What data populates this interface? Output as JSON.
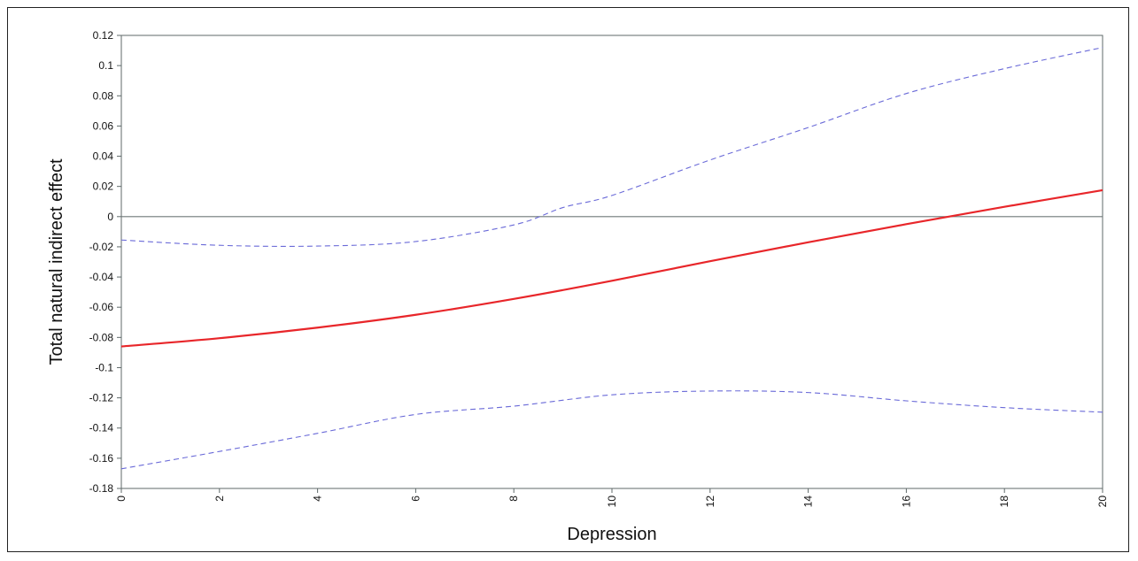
{
  "chart_data": {
    "type": "line",
    "title": "",
    "xlabel": "Depression",
    "ylabel": "Total natural indirect effect",
    "xlim": [
      0,
      20
    ],
    "ylim": [
      -0.18,
      0.12
    ],
    "x_ticks": [
      0,
      2,
      4,
      6,
      8,
      10,
      12,
      14,
      16,
      18,
      20
    ],
    "y_ticks": [
      -0.18,
      -0.16,
      -0.14,
      -0.12,
      -0.1,
      -0.08,
      -0.06,
      -0.04,
      -0.02,
      0,
      0.02,
      0.04,
      0.06,
      0.08,
      0.1,
      0.12
    ],
    "x_tick_labels": [
      "0",
      "2",
      "4",
      "6",
      "8",
      "10",
      "12",
      "14",
      "16",
      "18",
      "20"
    ],
    "y_tick_labels": [
      "-0.18",
      "-0.16",
      "-0.14",
      "-0.12",
      "-0.1",
      "-0.08",
      "-0.06",
      "-0.04",
      "-0.02",
      "0",
      "0.02",
      "0.04",
      "0.06",
      "0.08",
      "0.1",
      "0.12"
    ],
    "reference_line_y": 0,
    "grid": false,
    "legend": "none",
    "series": [
      {
        "role": "estimate",
        "style": "solid",
        "color": "#e8262a",
        "x": [
          0,
          2,
          4,
          6,
          8,
          10,
          12,
          14,
          16,
          18,
          20
        ],
        "y": [
          -0.086,
          -0.0805,
          -0.0735,
          -0.065,
          -0.0545,
          -0.0425,
          -0.0295,
          -0.017,
          -0.005,
          0.0065,
          0.0175
        ]
      },
      {
        "role": "upper bound",
        "style": "dashed",
        "color": "#6a6ad8",
        "x": [
          0,
          2,
          4,
          6,
          8,
          9,
          10,
          12,
          14,
          16,
          18,
          20
        ],
        "y": [
          -0.0155,
          -0.019,
          -0.0195,
          -0.0165,
          -0.0055,
          0.006,
          0.014,
          0.0375,
          0.059,
          0.0815,
          0.098,
          0.112
        ]
      },
      {
        "role": "lower bound",
        "style": "dashed",
        "color": "#6a6ad8",
        "x": [
          0,
          2,
          4,
          6,
          8,
          10,
          12,
          14,
          16,
          18,
          20
        ],
        "y": [
          -0.167,
          -0.1555,
          -0.1435,
          -0.131,
          -0.1255,
          -0.118,
          -0.1155,
          -0.1165,
          -0.122,
          -0.1265,
          -0.1295
        ]
      }
    ]
  }
}
